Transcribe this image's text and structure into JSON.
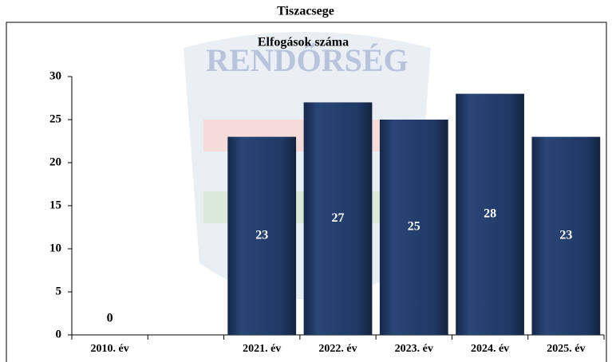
{
  "chart_data": {
    "type": "bar",
    "title": "Tiszacsege",
    "subtitle": "Elfogások száma",
    "watermark": "RENDŐRSÉG",
    "categories": [
      "2010. év",
      null,
      "2021. év",
      "2022. év",
      "2023. év",
      "2024. év",
      "2025. év"
    ],
    "values": [
      0,
      null,
      23,
      27,
      25,
      28,
      23
    ],
    "color": "#1f3864",
    "ylim": [
      0,
      30
    ],
    "yticks": [
      0,
      5,
      10,
      15,
      20,
      25,
      30
    ],
    "grid": false
  }
}
